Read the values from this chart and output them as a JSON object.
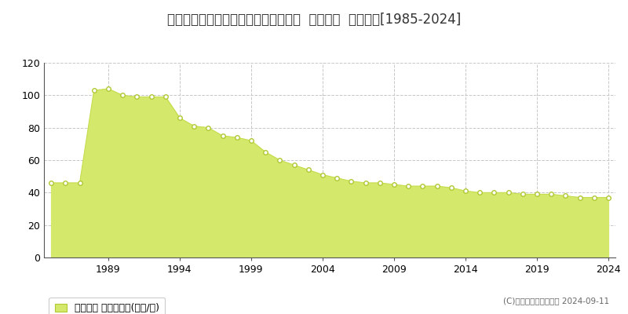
{
  "title": "埼玉県狭山市狭山台４丁目１７番２外  地価公示  地価推移[1985-2024]",
  "years": [
    1985,
    1986,
    1987,
    1988,
    1989,
    1990,
    1991,
    1992,
    1993,
    1994,
    1995,
    1996,
    1997,
    1998,
    1999,
    2000,
    2001,
    2002,
    2003,
    2004,
    2005,
    2006,
    2007,
    2008,
    2009,
    2010,
    2011,
    2012,
    2013,
    2014,
    2015,
    2016,
    2017,
    2018,
    2019,
    2020,
    2021,
    2022,
    2023,
    2024
  ],
  "values": [
    46,
    46,
    46,
    103,
    104,
    100,
    99,
    99,
    99,
    86,
    81,
    80,
    75,
    74,
    72,
    65,
    60,
    57,
    54,
    51,
    49,
    47,
    46,
    46,
    45,
    44,
    44,
    44,
    43,
    41,
    40,
    40,
    40,
    39,
    39,
    39,
    38,
    37,
    37,
    37
  ],
  "fill_color": "#d4e96b",
  "line_color": "#c8dc50",
  "marker_color": "#ffffff",
  "marker_edge_color": "#b0c832",
  "bg_color": "#ffffff",
  "plot_bg_color": "#ffffff",
  "grid_color": "#c8c8c8",
  "ylim": [
    0,
    120
  ],
  "yticks": [
    0,
    20,
    40,
    60,
    80,
    100,
    120
  ],
  "xtick_years": [
    1989,
    1994,
    1999,
    2004,
    2009,
    2014,
    2019,
    2024
  ],
  "legend_label": "地価公示 平均坪単価(万円/坪)",
  "copyright_text": "(C)土地価格ドットコム 2024-09-11",
  "title_fontsize": 12,
  "tick_fontsize": 9,
  "legend_fontsize": 9
}
